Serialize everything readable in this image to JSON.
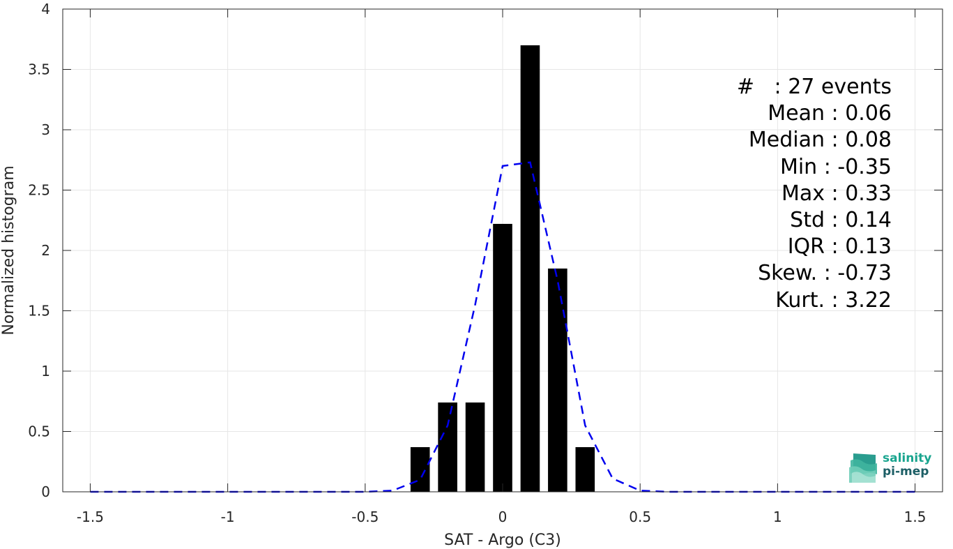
{
  "chart_data": {
    "type": "bar",
    "xlabel": "SAT - Argo (C3)",
    "ylabel": "Normalized histogram",
    "xlim": [
      -1.6,
      1.6
    ],
    "ylim": [
      0,
      4
    ],
    "xticks": [
      -1.5,
      -1,
      -0.5,
      0,
      0.5,
      1,
      1.5
    ],
    "xtick_labels": [
      "-1.5",
      "-1",
      "-0.5",
      "0",
      "0.5",
      "1",
      "1.5"
    ],
    "yticks": [
      0,
      0.5,
      1,
      1.5,
      2,
      2.5,
      3,
      3.5,
      4
    ],
    "ytick_labels": [
      "0",
      "0.5",
      "1",
      "1.5",
      "2",
      "2.5",
      "3",
      "3.5",
      "4"
    ],
    "grid": true,
    "bar_width": 0.07,
    "bars": {
      "x": [
        -0.3,
        -0.2,
        -0.1,
        0.0,
        0.1,
        0.2,
        0.3
      ],
      "values": [
        0.37,
        0.74,
        0.74,
        2.22,
        3.7,
        1.85,
        0.37
      ],
      "color": "#000000"
    },
    "fit_curve": {
      "style": "dashed",
      "color": "#0000ee",
      "x": [
        -1.5,
        -1.4,
        -1.3,
        -1.2,
        -1.1,
        -1.0,
        -0.9,
        -0.8,
        -0.7,
        -0.6,
        -0.5,
        -0.4,
        -0.3,
        -0.2,
        -0.1,
        0.0,
        0.1,
        0.2,
        0.3,
        0.4,
        0.5,
        0.6,
        0.7,
        0.8,
        0.9,
        1.0,
        1.1,
        1.2,
        1.3,
        1.4,
        1.5
      ],
      "y": [
        0,
        0,
        0,
        0,
        0,
        0,
        0,
        0,
        0,
        0,
        0,
        0.01,
        0.1,
        0.55,
        1.55,
        2.7,
        2.73,
        1.75,
        0.55,
        0.11,
        0.01,
        0,
        0,
        0,
        0,
        0,
        0,
        0,
        0,
        0,
        0
      ]
    }
  },
  "stats": [
    "#   : 27 events",
    "Mean : 0.06",
    "Median : 0.08",
    "Min : -0.35",
    "Max : 0.33",
    "Std : 0.14",
    "IQR : 0.13",
    "Skew. : -0.73",
    "Kurt. : 3.22"
  ],
  "logo": {
    "line1": "salinity",
    "line2": "pi-mep"
  }
}
